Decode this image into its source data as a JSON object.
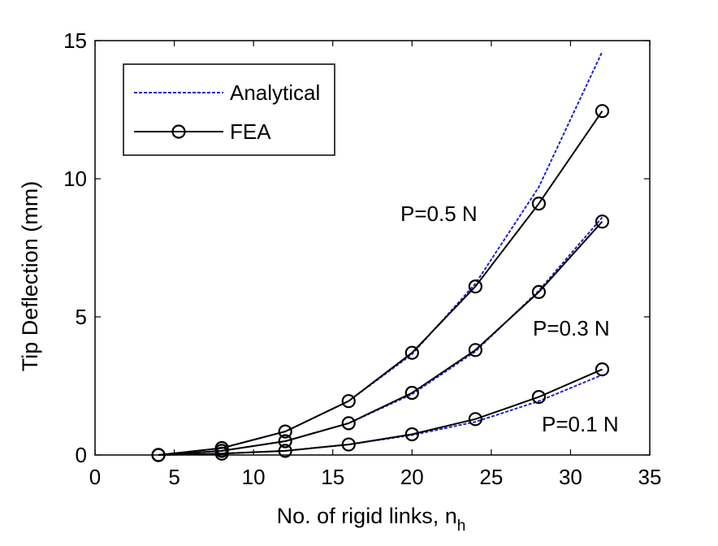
{
  "chart_data": {
    "type": "line",
    "xlabel_main": "No. of rigid links, n",
    "xlabel_sub": "h",
    "ylabel": "Tip Deflection (mm)",
    "xlim": [
      0,
      35
    ],
    "ylim": [
      0,
      15
    ],
    "xticks": [
      "0",
      "5",
      "10",
      "15",
      "20",
      "25",
      "30",
      "35"
    ],
    "yticks": [
      "0",
      "5",
      "10",
      "15"
    ],
    "grid": false,
    "legend_position": "top-left",
    "legend": [
      {
        "label": "Analytical",
        "style": "dotted",
        "color": "#2222cc"
      },
      {
        "label": "FEA",
        "style": "solid-circle",
        "color": "#000000"
      }
    ],
    "annotations": [
      "P=0.5 N",
      "P=0.3 N",
      "P=0.1 N"
    ],
    "x": [
      4,
      8,
      12,
      16,
      20,
      24,
      28,
      32
    ],
    "series": [
      {
        "group": "P=0.5 N",
        "kind": "Analytical",
        "values": [
          0,
          0.25,
          0.85,
          1.95,
          3.65,
          6.2,
          9.7,
          14.6
        ]
      },
      {
        "group": "P=0.5 N",
        "kind": "FEA",
        "values": [
          0,
          0.25,
          0.85,
          1.95,
          3.7,
          6.1,
          9.1,
          12.45
        ]
      },
      {
        "group": "P=0.3 N",
        "kind": "Analytical",
        "values": [
          0,
          0.15,
          0.5,
          1.15,
          2.2,
          3.75,
          5.95,
          8.6
        ]
      },
      {
        "group": "P=0.3 N",
        "kind": "FEA",
        "values": [
          0,
          0.15,
          0.5,
          1.15,
          2.25,
          3.8,
          5.9,
          8.45
        ]
      },
      {
        "group": "P=0.1 N",
        "kind": "Analytical",
        "values": [
          0,
          0.05,
          0.15,
          0.38,
          0.72,
          1.2,
          1.95,
          2.9
        ]
      },
      {
        "group": "P=0.1 N",
        "kind": "FEA",
        "values": [
          0,
          0.05,
          0.15,
          0.38,
          0.75,
          1.3,
          2.1,
          3.1
        ]
      }
    ]
  }
}
